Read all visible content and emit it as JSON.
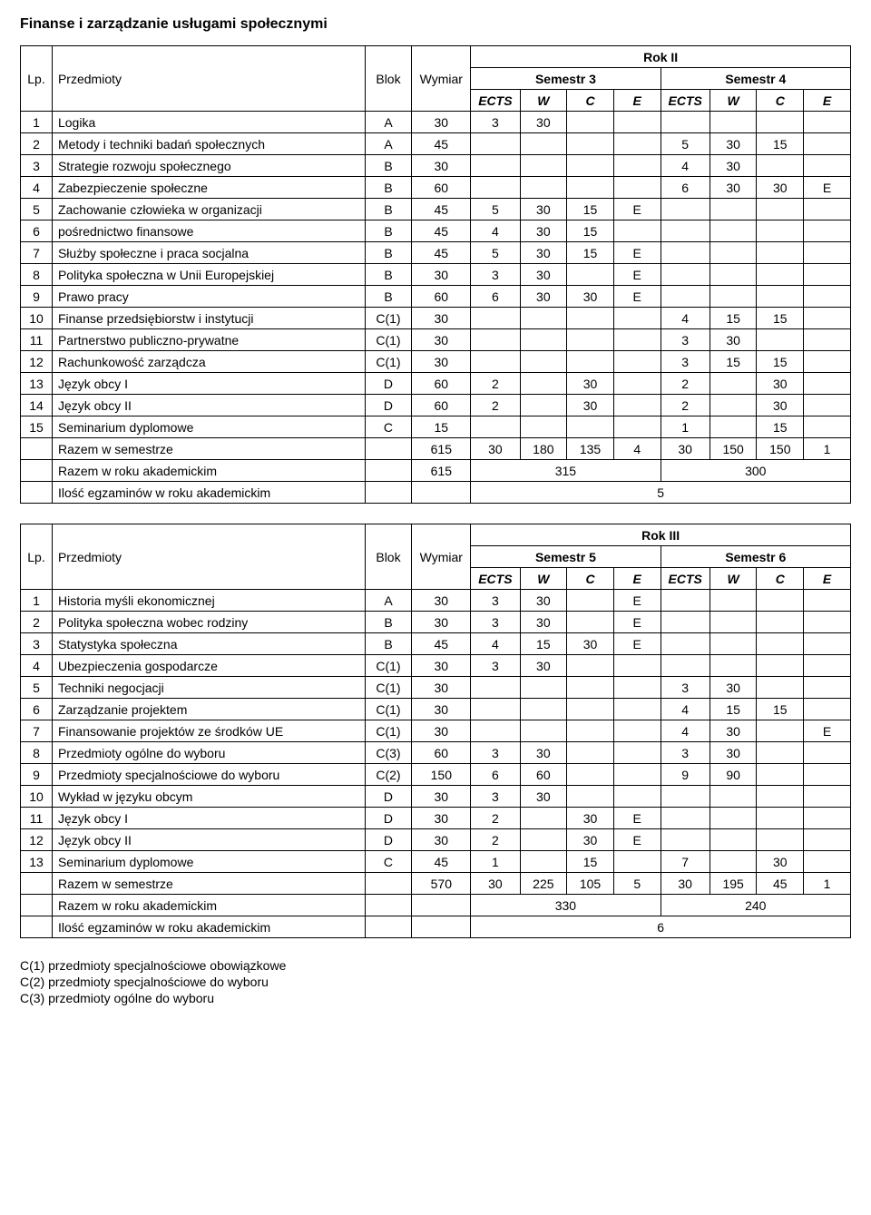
{
  "title": "Finanse i zarządzanie usługami społecznymi",
  "headers": {
    "lp": "Lp.",
    "subjects": "Przedmioty",
    "blok": "Blok",
    "wymiar": "Wymiar",
    "rok2": "Rok II",
    "rok3": "Rok III",
    "sem3": "Semestr 3",
    "sem4": "Semestr 4",
    "sem5": "Semestr 5",
    "sem6": "Semestr 6",
    "ects": "ECTS",
    "w": "W",
    "c": "C",
    "e": "E"
  },
  "table1": {
    "rows": [
      {
        "lp": "1",
        "subj": "Logika",
        "blok": "A",
        "wym": "30",
        "s1_ects": "3",
        "s1_w": "30",
        "s1_c": "",
        "s1_e": "",
        "s2_ects": "",
        "s2_w": "",
        "s2_c": "",
        "s2_e": ""
      },
      {
        "lp": "2",
        "subj": "Metody i techniki badań społecznych",
        "blok": "A",
        "wym": "45",
        "s1_ects": "",
        "s1_w": "",
        "s1_c": "",
        "s1_e": "",
        "s2_ects": "5",
        "s2_w": "30",
        "s2_c": "15",
        "s2_e": ""
      },
      {
        "lp": "3",
        "subj": "Strategie rozwoju społecznego",
        "blok": "B",
        "wym": "30",
        "s1_ects": "",
        "s1_w": "",
        "s1_c": "",
        "s1_e": "",
        "s2_ects": "4",
        "s2_w": "30",
        "s2_c": "",
        "s2_e": ""
      },
      {
        "lp": "4",
        "subj": "Zabezpieczenie społeczne",
        "blok": "B",
        "wym": "60",
        "s1_ects": "",
        "s1_w": "",
        "s1_c": "",
        "s1_e": "",
        "s2_ects": "6",
        "s2_w": "30",
        "s2_c": "30",
        "s2_e": "E"
      },
      {
        "lp": "5",
        "subj": "Zachowanie człowieka w organizacji",
        "blok": "B",
        "wym": "45",
        "s1_ects": "5",
        "s1_w": "30",
        "s1_c": "15",
        "s1_e": "E",
        "s2_ects": "",
        "s2_w": "",
        "s2_c": "",
        "s2_e": ""
      },
      {
        "lp": "6",
        "subj": "pośrednictwo finansowe",
        "blok": "B",
        "wym": "45",
        "s1_ects": "4",
        "s1_w": "30",
        "s1_c": "15",
        "s1_e": "",
        "s2_ects": "",
        "s2_w": "",
        "s2_c": "",
        "s2_e": ""
      },
      {
        "lp": "7",
        "subj": "Służby społeczne i praca socjalna",
        "blok": "B",
        "wym": "45",
        "s1_ects": "5",
        "s1_w": "30",
        "s1_c": "15",
        "s1_e": "E",
        "s2_ects": "",
        "s2_w": "",
        "s2_c": "",
        "s2_e": ""
      },
      {
        "lp": "8",
        "subj": "Polityka społeczna w Unii Europejskiej",
        "blok": "B",
        "wym": "30",
        "s1_ects": "3",
        "s1_w": "30",
        "s1_c": "",
        "s1_e": "E",
        "s2_ects": "",
        "s2_w": "",
        "s2_c": "",
        "s2_e": ""
      },
      {
        "lp": "9",
        "subj": "Prawo pracy",
        "blok": "B",
        "wym": "60",
        "s1_ects": "6",
        "s1_w": "30",
        "s1_c": "30",
        "s1_e": "E",
        "s2_ects": "",
        "s2_w": "",
        "s2_c": "",
        "s2_e": ""
      },
      {
        "lp": "10",
        "subj": "Finanse przedsiębiorstw i instytucji",
        "blok": "C(1)",
        "wym": "30",
        "s1_ects": "",
        "s1_w": "",
        "s1_c": "",
        "s1_e": "",
        "s2_ects": "4",
        "s2_w": "15",
        "s2_c": "15",
        "s2_e": ""
      },
      {
        "lp": "11",
        "subj": "Partnerstwo publiczno-prywatne",
        "blok": "C(1)",
        "wym": "30",
        "s1_ects": "",
        "s1_w": "",
        "s1_c": "",
        "s1_e": "",
        "s2_ects": "3",
        "s2_w": "30",
        "s2_c": "",
        "s2_e": ""
      },
      {
        "lp": "12",
        "subj": "Rachunkowość zarządcza",
        "blok": "C(1)",
        "wym": "30",
        "s1_ects": "",
        "s1_w": "",
        "s1_c": "",
        "s1_e": "",
        "s2_ects": "3",
        "s2_w": "15",
        "s2_c": "15",
        "s2_e": ""
      },
      {
        "lp": "13",
        "subj": "Język obcy I",
        "blok": "D",
        "wym": "60",
        "s1_ects": "2",
        "s1_w": "",
        "s1_c": "30",
        "s1_e": "",
        "s2_ects": "2",
        "s2_w": "",
        "s2_c": "30",
        "s2_e": ""
      },
      {
        "lp": "14",
        "subj": "Język obcy II",
        "blok": "D",
        "wym": "60",
        "s1_ects": "2",
        "s1_w": "",
        "s1_c": "30",
        "s1_e": "",
        "s2_ects": "2",
        "s2_w": "",
        "s2_c": "30",
        "s2_e": ""
      },
      {
        "lp": "15",
        "subj": "Seminarium dyplomowe",
        "blok": "C",
        "wym": "15",
        "s1_ects": "",
        "s1_w": "",
        "s1_c": "",
        "s1_e": "",
        "s2_ects": "1",
        "s2_w": "",
        "s2_c": "15",
        "s2_e": ""
      }
    ],
    "sum_sem": {
      "label": "Razem w semestrze",
      "wym": "615",
      "s1_ects": "30",
      "s1_w": "180",
      "s1_c": "135",
      "s1_e": "4",
      "s2_ects": "30",
      "s2_w": "150",
      "s2_c": "150",
      "s2_e": "1"
    },
    "sum_year": {
      "label": "Razem w roku akademickim",
      "wym": "615",
      "s1": "315",
      "s2": "300"
    },
    "exams": {
      "label": "Ilość egzaminów w roku akademickim",
      "val": "5"
    }
  },
  "table2": {
    "rows": [
      {
        "lp": "1",
        "subj": "Historia myśli ekonomicznej",
        "blok": "A",
        "wym": "30",
        "s1_ects": "3",
        "s1_w": "30",
        "s1_c": "",
        "s1_e": "E",
        "s2_ects": "",
        "s2_w": "",
        "s2_c": "",
        "s2_e": ""
      },
      {
        "lp": "2",
        "subj": "Polityka społeczna wobec rodziny",
        "blok": "B",
        "wym": "30",
        "s1_ects": "3",
        "s1_w": "30",
        "s1_c": "",
        "s1_e": "E",
        "s2_ects": "",
        "s2_w": "",
        "s2_c": "",
        "s2_e": ""
      },
      {
        "lp": "3",
        "subj": "Statystyka społeczna",
        "blok": "B",
        "wym": "45",
        "s1_ects": "4",
        "s1_w": "15",
        "s1_c": "30",
        "s1_e": "E",
        "s2_ects": "",
        "s2_w": "",
        "s2_c": "",
        "s2_e": ""
      },
      {
        "lp": "4",
        "subj": "Ubezpieczenia gospodarcze",
        "blok": "C(1)",
        "wym": "30",
        "s1_ects": "3",
        "s1_w": "30",
        "s1_c": "",
        "s1_e": "",
        "s2_ects": "",
        "s2_w": "",
        "s2_c": "",
        "s2_e": ""
      },
      {
        "lp": "5",
        "subj": "Techniki negocjacji",
        "blok": "C(1)",
        "wym": "30",
        "s1_ects": "",
        "s1_w": "",
        "s1_c": "",
        "s1_e": "",
        "s2_ects": "3",
        "s2_w": "30",
        "s2_c": "",
        "s2_e": ""
      },
      {
        "lp": "6",
        "subj": "Zarządzanie projektem",
        "blok": "C(1)",
        "wym": "30",
        "s1_ects": "",
        "s1_w": "",
        "s1_c": "",
        "s1_e": "",
        "s2_ects": "4",
        "s2_w": "15",
        "s2_c": "15",
        "s2_e": ""
      },
      {
        "lp": "7",
        "subj": "Finansowanie projektów ze środków UE",
        "blok": "C(1)",
        "wym": "30",
        "s1_ects": "",
        "s1_w": "",
        "s1_c": "",
        "s1_e": "",
        "s2_ects": "4",
        "s2_w": "30",
        "s2_c": "",
        "s2_e": "E"
      },
      {
        "lp": "8",
        "subj": "Przedmioty ogólne do wyboru",
        "blok": "C(3)",
        "wym": "60",
        "s1_ects": "3",
        "s1_w": "30",
        "s1_c": "",
        "s1_e": "",
        "s2_ects": "3",
        "s2_w": "30",
        "s2_c": "",
        "s2_e": ""
      },
      {
        "lp": "9",
        "subj": "Przedmioty specjalnościowe do wyboru",
        "blok": "C(2)",
        "wym": "150",
        "s1_ects": "6",
        "s1_w": "60",
        "s1_c": "",
        "s1_e": "",
        "s2_ects": "9",
        "s2_w": "90",
        "s2_c": "",
        "s2_e": ""
      },
      {
        "lp": "10",
        "subj": "Wykład w języku obcym",
        "blok": "D",
        "wym": "30",
        "s1_ects": "3",
        "s1_w": "30",
        "s1_c": "",
        "s1_e": "",
        "s2_ects": "",
        "s2_w": "",
        "s2_c": "",
        "s2_e": ""
      },
      {
        "lp": "11",
        "subj": "Język obcy I",
        "blok": "D",
        "wym": "30",
        "s1_ects": "2",
        "s1_w": "",
        "s1_c": "30",
        "s1_e": "E",
        "s2_ects": "",
        "s2_w": "",
        "s2_c": "",
        "s2_e": ""
      },
      {
        "lp": "12",
        "subj": "Język obcy II",
        "blok": "D",
        "wym": "30",
        "s1_ects": "2",
        "s1_w": "",
        "s1_c": "30",
        "s1_e": "E",
        "s2_ects": "",
        "s2_w": "",
        "s2_c": "",
        "s2_e": ""
      },
      {
        "lp": "13",
        "subj": "Seminarium dyplomowe",
        "blok": "C",
        "wym": "45",
        "s1_ects": "1",
        "s1_w": "",
        "s1_c": "15",
        "s1_e": "",
        "s2_ects": "7",
        "s2_w": "",
        "s2_c": "30",
        "s2_e": ""
      }
    ],
    "sum_sem": {
      "label": "Razem w semestrze",
      "wym": "570",
      "s1_ects": "30",
      "s1_w": "225",
      "s1_c": "105",
      "s1_e": "5",
      "s2_ects": "30",
      "s2_w": "195",
      "s2_c": "45",
      "s2_e": "1"
    },
    "sum_year": {
      "label": "Razem w roku akademickim",
      "wym": "",
      "s1": "330",
      "s2": "240"
    },
    "exams": {
      "label": "Ilość egzaminów w roku akademickim",
      "val": "6"
    }
  },
  "footnotes": {
    "c1": "C(1) przedmioty specjalnościowe obowiązkowe",
    "c2": "C(2) przedmioty specjalnościowe do wyboru",
    "c3": "C(3) przedmioty ogólne do wyboru"
  }
}
